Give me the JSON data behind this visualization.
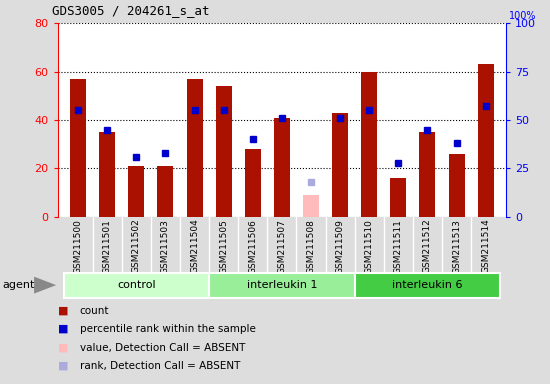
{
  "title": "GDS3005 / 204261_s_at",
  "samples": [
    "GSM211500",
    "GSM211501",
    "GSM211502",
    "GSM211503",
    "GSM211504",
    "GSM211505",
    "GSM211506",
    "GSM211507",
    "GSM211508",
    "GSM211509",
    "GSM211510",
    "GSM211511",
    "GSM211512",
    "GSM211513",
    "GSM211514"
  ],
  "counts": [
    57,
    35,
    21,
    21,
    57,
    54,
    28,
    41,
    9,
    43,
    60,
    16,
    35,
    26,
    63
  ],
  "ranks": [
    55,
    45,
    31,
    33,
    55,
    55,
    40,
    51,
    18,
    51,
    55,
    28,
    45,
    38,
    57
  ],
  "absent_indices": [
    8
  ],
  "groups": [
    {
      "label": "control",
      "start": 0,
      "end": 4,
      "color": "#ccffcc"
    },
    {
      "label": "interleukin 1",
      "start": 5,
      "end": 9,
      "color": "#99ee99"
    },
    {
      "label": "interleukin 6",
      "start": 10,
      "end": 14,
      "color": "#44cc44"
    }
  ],
  "bar_color_normal": "#aa1100",
  "bar_color_absent": "#ffbbbb",
  "rank_color_normal": "#0000cc",
  "rank_color_absent": "#aaaadd",
  "ylim_left": [
    0,
    80
  ],
  "ylim_right": [
    0,
    100
  ],
  "yticks_left": [
    0,
    20,
    40,
    60,
    80
  ],
  "yticks_right": [
    0,
    25,
    50,
    75,
    100
  ],
  "bg_color": "#dddddd",
  "plot_bg": "#ffffff",
  "xlabel_bg": "#bbbbbb",
  "agent_label": "agent",
  "legend_items": [
    {
      "label": "count",
      "color": "#aa1100"
    },
    {
      "label": "percentile rank within the sample",
      "color": "#0000cc"
    },
    {
      "label": "value, Detection Call = ABSENT",
      "color": "#ffbbbb"
    },
    {
      "label": "rank, Detection Call = ABSENT",
      "color": "#aaaadd"
    }
  ]
}
